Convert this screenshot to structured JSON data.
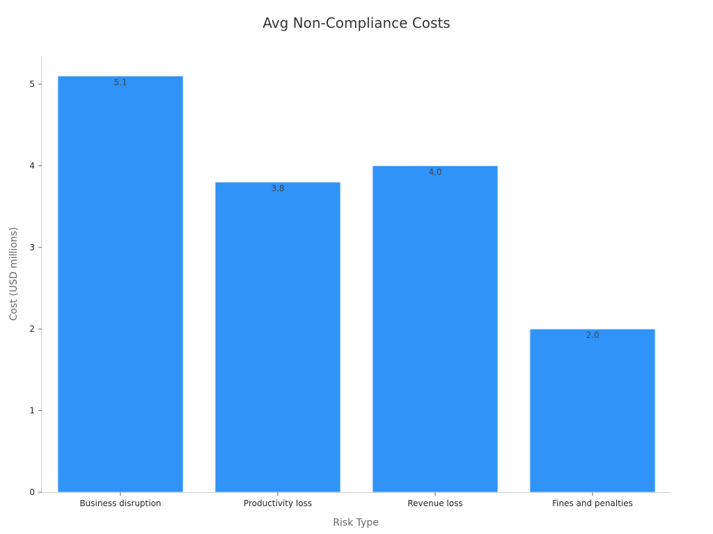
{
  "chart_data": {
    "type": "bar",
    "title": "Avg Non-Compliance Costs",
    "xlabel": "Risk Type",
    "ylabel": "Cost (USD millions)",
    "categories": [
      "Business disruption",
      "Productivity loss",
      "Revenue loss",
      "Fines and penalties"
    ],
    "values": [
      5.1,
      3.8,
      4.0,
      2.0
    ],
    "data_labels": [
      "5.1",
      "3.8",
      "4.0",
      "2.0"
    ],
    "ylim": [
      0,
      5.35
    ],
    "yticks": [
      0,
      1,
      2,
      3,
      4,
      5
    ],
    "grid": false,
    "legend": "none",
    "bar_color": "#2f93f8"
  }
}
